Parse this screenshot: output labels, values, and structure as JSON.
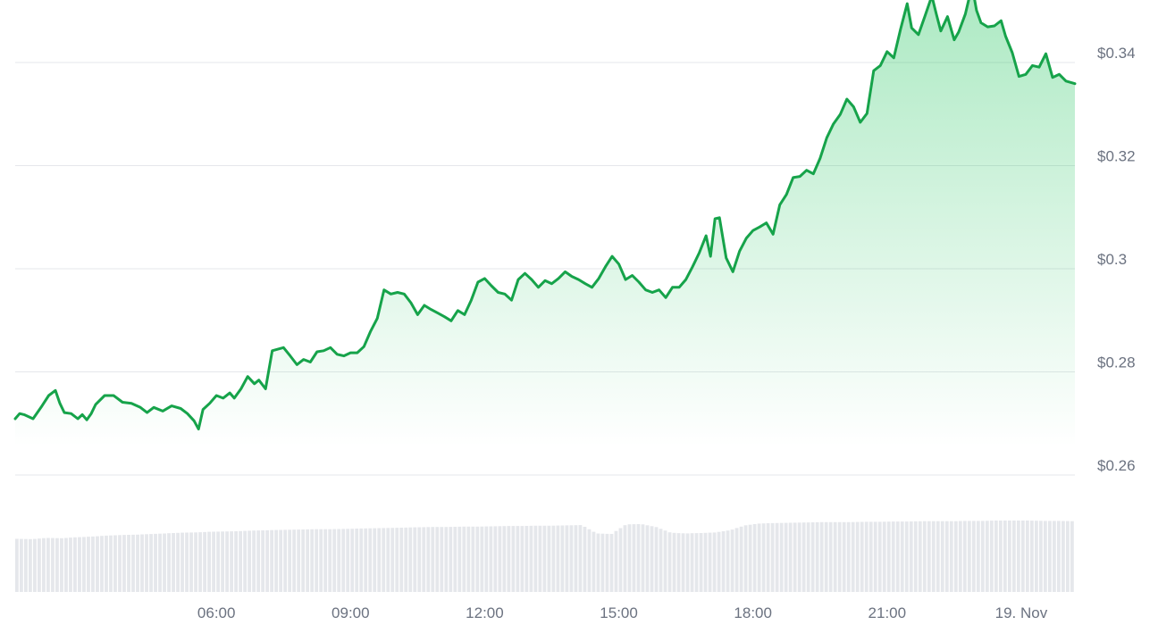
{
  "chart_data": {
    "type": "area",
    "grid": true,
    "ylim": [
      0.26,
      0.35
    ],
    "y_ticks": [
      {
        "value": 0.34,
        "label": "$0.34"
      },
      {
        "value": 0.32,
        "label": "$0.32"
      },
      {
        "value": 0.3,
        "label": "$0.3"
      },
      {
        "value": 0.28,
        "label": "$0.28"
      },
      {
        "value": 0.26,
        "label": "$0.26"
      }
    ],
    "x_range_hours": [
      1.5,
      25.2
    ],
    "x_ticks": [
      {
        "hour": 6,
        "label": "06:00"
      },
      {
        "hour": 9,
        "label": "09:00"
      },
      {
        "hour": 12,
        "label": "12:00"
      },
      {
        "hour": 15,
        "label": "15:00"
      },
      {
        "hour": 18,
        "label": "18:00"
      },
      {
        "hour": 21,
        "label": "21:00"
      },
      {
        "hour": 24,
        "label": "19. Nov"
      }
    ],
    "series": [
      {
        "type": "line",
        "color": "#16a34a",
        "fill_color": "#22c55e",
        "points": [
          [
            1.5,
            0.269
          ],
          [
            1.6,
            0.27
          ],
          [
            1.7,
            0.2698
          ],
          [
            1.9,
            0.269
          ],
          [
            2.1,
            0.2715
          ],
          [
            2.25,
            0.2735
          ],
          [
            2.4,
            0.2745
          ],
          [
            2.5,
            0.272
          ],
          [
            2.6,
            0.2702
          ],
          [
            2.75,
            0.27
          ],
          [
            2.9,
            0.269
          ],
          [
            3.0,
            0.2698
          ],
          [
            3.1,
            0.2688
          ],
          [
            3.2,
            0.27
          ],
          [
            3.3,
            0.2718
          ],
          [
            3.5,
            0.2735
          ],
          [
            3.7,
            0.2735
          ],
          [
            3.9,
            0.2722
          ],
          [
            4.1,
            0.272
          ],
          [
            4.3,
            0.2712
          ],
          [
            4.45,
            0.2702
          ],
          [
            4.6,
            0.2712
          ],
          [
            4.8,
            0.2705
          ],
          [
            5.0,
            0.2715
          ],
          [
            5.2,
            0.271
          ],
          [
            5.35,
            0.27
          ],
          [
            5.5,
            0.2686
          ],
          [
            5.6,
            0.267
          ],
          [
            5.7,
            0.2708
          ],
          [
            5.85,
            0.272
          ],
          [
            6.0,
            0.2735
          ],
          [
            6.15,
            0.273
          ],
          [
            6.3,
            0.274
          ],
          [
            6.4,
            0.273
          ],
          [
            6.55,
            0.2748
          ],
          [
            6.7,
            0.2772
          ],
          [
            6.85,
            0.2758
          ],
          [
            6.95,
            0.2765
          ],
          [
            7.1,
            0.2748
          ],
          [
            7.25,
            0.2822
          ],
          [
            7.5,
            0.2828
          ],
          [
            7.65,
            0.2812
          ],
          [
            7.8,
            0.2795
          ],
          [
            7.95,
            0.2805
          ],
          [
            8.1,
            0.28
          ],
          [
            8.25,
            0.282
          ],
          [
            8.4,
            0.2822
          ],
          [
            8.55,
            0.2828
          ],
          [
            8.7,
            0.2815
          ],
          [
            8.85,
            0.2812
          ],
          [
            9.0,
            0.2818
          ],
          [
            9.15,
            0.2818
          ],
          [
            9.3,
            0.283
          ],
          [
            9.45,
            0.286
          ],
          [
            9.6,
            0.2885
          ],
          [
            9.75,
            0.294
          ],
          [
            9.9,
            0.2932
          ],
          [
            10.05,
            0.2935
          ],
          [
            10.2,
            0.2932
          ],
          [
            10.35,
            0.2915
          ],
          [
            10.5,
            0.2892
          ],
          [
            10.65,
            0.291
          ],
          [
            10.8,
            0.2902
          ],
          [
            10.95,
            0.2895
          ],
          [
            11.1,
            0.2888
          ],
          [
            11.25,
            0.288
          ],
          [
            11.4,
            0.29
          ],
          [
            11.55,
            0.2892
          ],
          [
            11.7,
            0.292
          ],
          [
            11.85,
            0.2955
          ],
          [
            12.0,
            0.2962
          ],
          [
            12.15,
            0.2948
          ],
          [
            12.3,
            0.2935
          ],
          [
            12.45,
            0.2932
          ],
          [
            12.6,
            0.292
          ],
          [
            12.75,
            0.296
          ],
          [
            12.9,
            0.2972
          ],
          [
            13.05,
            0.296
          ],
          [
            13.2,
            0.2945
          ],
          [
            13.35,
            0.2958
          ],
          [
            13.5,
            0.2952
          ],
          [
            13.65,
            0.2962
          ],
          [
            13.8,
            0.2975
          ],
          [
            13.95,
            0.2966
          ],
          [
            14.1,
            0.296
          ],
          [
            14.25,
            0.2952
          ],
          [
            14.4,
            0.2945
          ],
          [
            14.55,
            0.2962
          ],
          [
            14.7,
            0.2985
          ],
          [
            14.85,
            0.3005
          ],
          [
            15.0,
            0.299
          ],
          [
            15.15,
            0.296
          ],
          [
            15.3,
            0.2968
          ],
          [
            15.45,
            0.2955
          ],
          [
            15.6,
            0.294
          ],
          [
            15.75,
            0.2935
          ],
          [
            15.9,
            0.294
          ],
          [
            16.05,
            0.2925
          ],
          [
            16.2,
            0.2945
          ],
          [
            16.35,
            0.2945
          ],
          [
            16.5,
            0.296
          ],
          [
            16.65,
            0.2985
          ],
          [
            16.8,
            0.3012
          ],
          [
            16.95,
            0.3045
          ],
          [
            17.05,
            0.3005
          ],
          [
            17.15,
            0.3078
          ],
          [
            17.25,
            0.308
          ],
          [
            17.4,
            0.3002
          ],
          [
            17.55,
            0.2975
          ],
          [
            17.7,
            0.3015
          ],
          [
            17.85,
            0.304
          ],
          [
            18.0,
            0.3055
          ],
          [
            18.15,
            0.3062
          ],
          [
            18.3,
            0.307
          ],
          [
            18.45,
            0.3048
          ],
          [
            18.6,
            0.3105
          ],
          [
            18.75,
            0.3125
          ],
          [
            18.9,
            0.3158
          ],
          [
            19.05,
            0.316
          ],
          [
            19.2,
            0.3172
          ],
          [
            19.35,
            0.3165
          ],
          [
            19.5,
            0.3195
          ],
          [
            19.65,
            0.3235
          ],
          [
            19.8,
            0.3262
          ],
          [
            19.95,
            0.328
          ],
          [
            20.1,
            0.331
          ],
          [
            20.25,
            0.3295
          ],
          [
            20.4,
            0.3265
          ],
          [
            20.55,
            0.3282
          ],
          [
            20.7,
            0.3365
          ],
          [
            20.85,
            0.3375
          ],
          [
            21.0,
            0.3402
          ],
          [
            21.15,
            0.339
          ],
          [
            21.3,
            0.3445
          ],
          [
            21.45,
            0.3495
          ],
          [
            21.55,
            0.3448
          ],
          [
            21.7,
            0.3435
          ],
          [
            21.85,
            0.3472
          ],
          [
            22.0,
            0.351
          ],
          [
            22.1,
            0.3475
          ],
          [
            22.2,
            0.3442
          ],
          [
            22.35,
            0.347
          ],
          [
            22.5,
            0.3425
          ],
          [
            22.6,
            0.344
          ],
          [
            22.75,
            0.3475
          ],
          [
            22.9,
            0.353
          ],
          [
            23.0,
            0.3482
          ],
          [
            23.1,
            0.3458
          ],
          [
            23.25,
            0.345
          ],
          [
            23.4,
            0.3452
          ],
          [
            23.55,
            0.3462
          ],
          [
            23.65,
            0.3432
          ],
          [
            23.8,
            0.34
          ],
          [
            23.95,
            0.3354
          ],
          [
            24.1,
            0.3358
          ],
          [
            24.25,
            0.3375
          ],
          [
            24.4,
            0.3372
          ],
          [
            24.55,
            0.3398
          ],
          [
            24.7,
            0.3352
          ],
          [
            24.85,
            0.3358
          ],
          [
            25.0,
            0.3345
          ],
          [
            25.2,
            0.334
          ]
        ]
      },
      {
        "type": "bar",
        "name": "volume",
        "color": "#e5e7eb",
        "values": [
          0.43,
          0.42,
          0.46,
          0.45,
          0.48,
          0.5,
          0.53,
          0.55,
          0.56,
          0.58,
          0.6,
          0.62,
          0.63,
          0.65,
          0.66,
          0.67,
          0.69,
          0.7,
          0.71,
          0.72,
          0.73,
          0.73,
          0.74,
          0.75,
          0.76,
          0.77,
          0.78,
          0.79,
          0.8,
          0.8,
          0.81,
          0.81,
          0.82,
          0.83,
          0.83,
          0.84,
          0.84,
          0.85,
          0.86,
          0.6,
          0.58,
          0.88,
          0.89,
          0.8,
          0.62,
          0.6,
          0.61,
          0.63,
          0.7,
          0.85,
          0.91,
          0.92,
          0.93,
          0.94,
          0.95,
          0.95,
          0.95,
          0.96,
          0.96,
          0.97,
          0.97,
          0.98,
          0.98,
          0.98,
          0.99,
          0.99,
          1.0,
          1.0,
          1.0,
          0.99,
          0.99,
          0.98
        ]
      }
    ]
  }
}
